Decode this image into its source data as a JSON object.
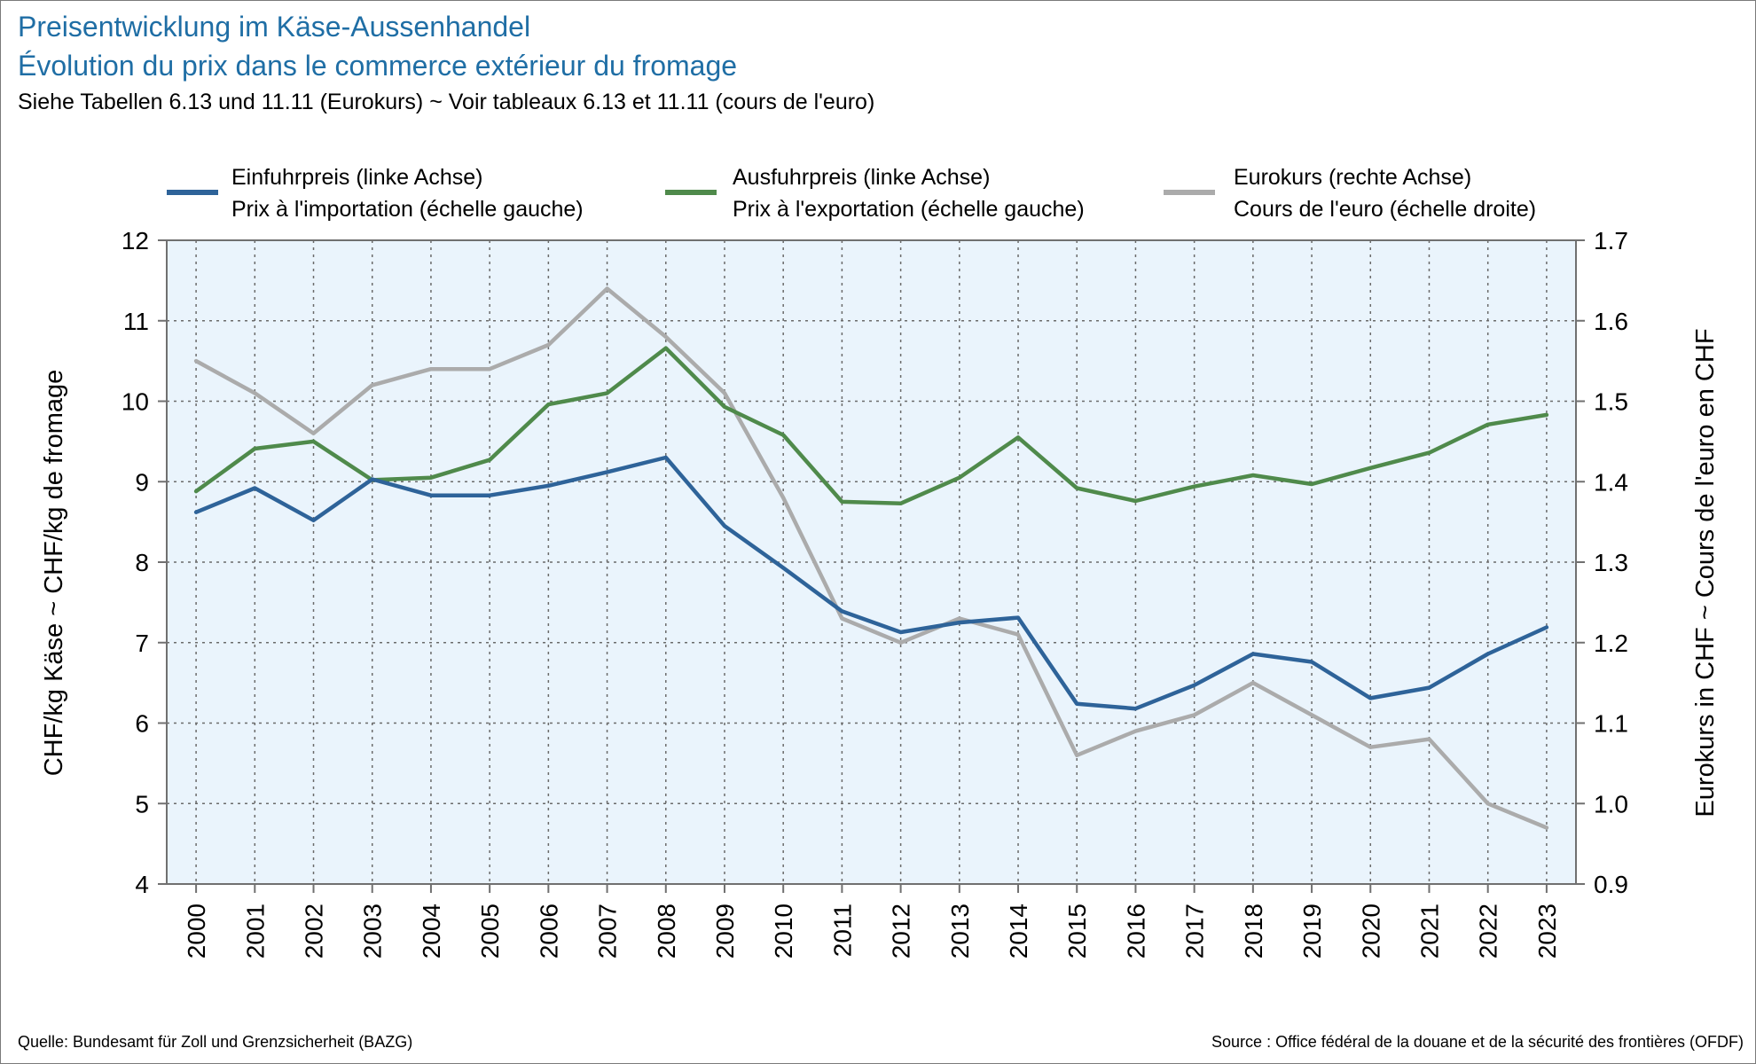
{
  "title_de": "Preisentwicklung im Käse-Aussenhandel",
  "title_fr": "Évolution du prix dans le commerce extérieur du fromage",
  "subtitle": "Siehe Tabellen 6.13 und 11.11 (Eurokurs)   ~   Voir tableaux 6.13 et 11.11 (cours de l'euro)",
  "legend": [
    {
      "de": "Einfuhrpreis (linke Achse)",
      "fr": "Prix à l'importation (échelle gauche)",
      "color": "#2e6399"
    },
    {
      "de": "Ausfuhrpreis (linke Achse)",
      "fr": "Prix à l'exportation (échelle gauche)",
      "color": "#4f8a4b"
    },
    {
      "de": "Eurokurs (rechte Achse)",
      "fr": "Cours de l'euro (échelle droite)",
      "color": "#ababab"
    }
  ],
  "source_de": "Quelle: Bundesamt für Zoll und Grenzsicherheit (BAZG)",
  "source_fr": "Source : Office fédéral de la douane et de la sécurité des frontières (OFDF)",
  "chart_data": {
    "type": "line",
    "x": [
      "2000",
      "2001",
      "2002",
      "2003",
      "2004",
      "2005",
      "2006",
      "2007",
      "2008",
      "2009",
      "2010",
      "2011",
      "2012",
      "2013",
      "2014",
      "2015",
      "2016",
      "2017",
      "2018",
      "2019",
      "2020",
      "2021",
      "2022",
      "2023"
    ],
    "series": [
      {
        "name": "Einfuhrpreis (linke Achse)",
        "axis": "left",
        "color": "#2e6399",
        "values": [
          8.62,
          8.92,
          8.52,
          9.03,
          8.83,
          8.83,
          8.95,
          9.12,
          9.3,
          8.45,
          7.93,
          7.39,
          7.13,
          7.25,
          7.31,
          6.24,
          6.18,
          6.47,
          6.86,
          6.76,
          6.31,
          6.44,
          6.86,
          7.19
        ]
      },
      {
        "name": "Ausfuhrpreis (linke Achse)",
        "axis": "left",
        "color": "#4f8a4b",
        "values": [
          8.88,
          9.41,
          9.5,
          9.02,
          9.05,
          9.27,
          9.96,
          10.1,
          10.66,
          9.93,
          9.58,
          8.75,
          8.73,
          9.05,
          9.55,
          8.92,
          8.76,
          8.94,
          9.08,
          8.97,
          9.17,
          9.36,
          9.71,
          9.83
        ]
      },
      {
        "name": "Eurokurs (rechte Achse)",
        "axis": "right",
        "color": "#ababab",
        "values": [
          1.55,
          1.51,
          1.46,
          1.52,
          1.54,
          1.54,
          1.57,
          1.64,
          1.58,
          1.51,
          1.38,
          1.23,
          1.2,
          1.23,
          1.21,
          1.06,
          1.09,
          1.11,
          1.15,
          1.11,
          1.07,
          1.08,
          1.0,
          0.97
        ]
      }
    ],
    "y_left": {
      "label": "CHF/kg Käse   ~   CHF/kg de fromage",
      "lim": [
        4,
        12
      ],
      "ticks": [
        "4",
        "5",
        "6",
        "7",
        "8",
        "9",
        "10",
        "11",
        "12"
      ]
    },
    "y_right": {
      "label": "Eurokurs in CHF   ~   Cours de l'euro en CHF",
      "lim": [
        0.9,
        1.7
      ],
      "ticks": [
        "0.9",
        "1.0",
        "1.1",
        "1.2",
        "1.3",
        "1.4",
        "1.5",
        "1.6",
        "1.7"
      ]
    },
    "grid": true,
    "grid_style": "dotted",
    "plot_background": "#eaf4fc",
    "legend_position": "top"
  }
}
